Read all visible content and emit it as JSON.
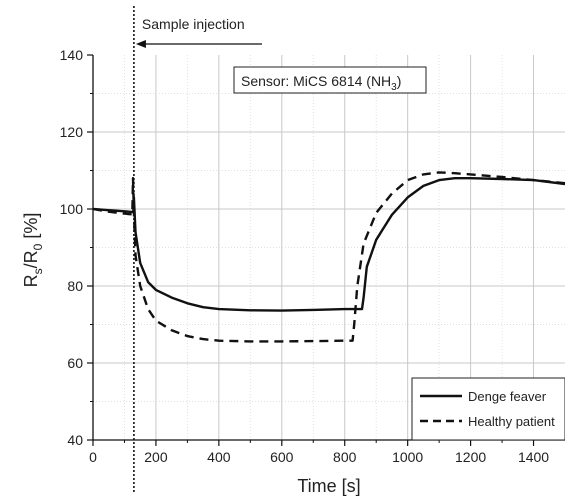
{
  "chart_data": {
    "type": "line",
    "xlabel": "Time [s]",
    "ylabel_parts": [
      "R",
      "s",
      "/R",
      "0",
      " [%]"
    ],
    "xlim": [
      0,
      1500
    ],
    "ylim": [
      40,
      140
    ],
    "x_ticks": [
      0,
      200,
      400,
      600,
      800,
      1000,
      1200,
      1400
    ],
    "y_ticks": [
      40,
      60,
      80,
      100,
      120,
      140
    ],
    "grid": true,
    "legend_position": "bottom-right",
    "annotations": {
      "injection_label": "Sample injection",
      "injection_time": 130,
      "sensor_label": "Sensor: MiCS 6814 (NH",
      "sensor_sub": "3",
      "sensor_close": ")"
    },
    "series": [
      {
        "name": "Denge feaver",
        "style": "solid",
        "x": [
          0,
          50,
          100,
          128,
          130,
          135,
          150,
          175,
          200,
          250,
          300,
          350,
          400,
          500,
          600,
          700,
          800,
          855,
          860,
          870,
          900,
          950,
          1000,
          1050,
          1100,
          1150,
          1200,
          1300,
          1400,
          1500
        ],
        "y": [
          100,
          99.7,
          99.4,
          99.2,
          103,
          94,
          86,
          81,
          79,
          77,
          75.5,
          74.5,
          74,
          73.7,
          73.6,
          73.8,
          74,
          74,
          77,
          85,
          92,
          98.5,
          103,
          106,
          107.5,
          108,
          108,
          107.8,
          107.5,
          106.5
        ]
      },
      {
        "name": "Healthy patient",
        "style": "dashed",
        "x": [
          0,
          50,
          100,
          125,
          127,
          130,
          135,
          150,
          175,
          200,
          250,
          300,
          350,
          400,
          500,
          600,
          700,
          800,
          825,
          830,
          840,
          860,
          900,
          950,
          1000,
          1050,
          1100,
          1150,
          1200,
          1300,
          1400,
          1500
        ],
        "y": [
          100,
          99.3,
          98.8,
          98.6,
          108,
          99,
          88,
          80,
          74,
          71,
          68.5,
          67,
          66.2,
          65.8,
          65.6,
          65.6,
          65.7,
          65.8,
          65.8,
          70,
          80,
          91,
          99,
          104,
          107.5,
          109,
          109.5,
          109.3,
          109,
          108.3,
          107.5,
          106.7
        ]
      }
    ]
  }
}
